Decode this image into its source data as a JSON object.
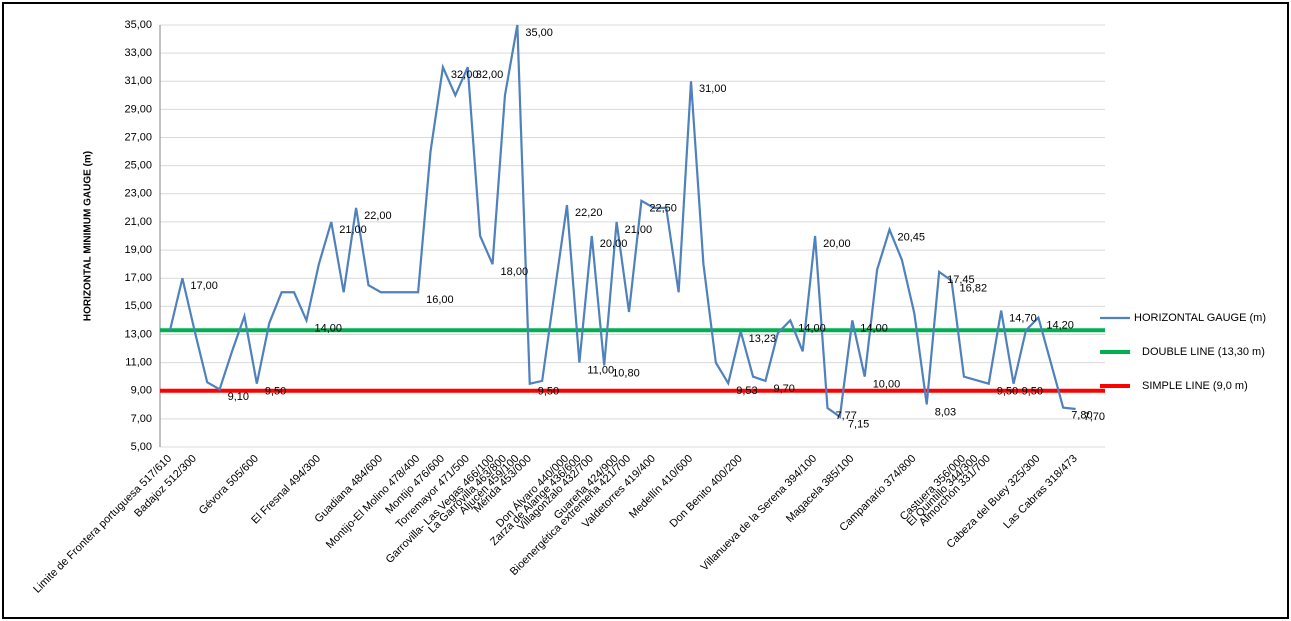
{
  "chart_data": {
    "type": "line",
    "y_label": "HORIZONTAL MINIMUM GAUGE (m)",
    "ylim": [
      5,
      35
    ],
    "yticks": [
      {
        "value": 5,
        "label": "5,00"
      },
      {
        "value": 7,
        "label": "7,00"
      },
      {
        "value": 9,
        "label": "9,00"
      },
      {
        "value": 11,
        "label": "11,00"
      },
      {
        "value": 13,
        "label": "13,00"
      },
      {
        "value": 15,
        "label": "15,00"
      },
      {
        "value": 17,
        "label": "17,00"
      },
      {
        "value": 19,
        "label": "19,00"
      },
      {
        "value": 21,
        "label": "21,00"
      },
      {
        "value": 23,
        "label": "23,00"
      },
      {
        "value": 25,
        "label": "25,00"
      },
      {
        "value": 27,
        "label": "27,00"
      },
      {
        "value": 29,
        "label": "29,00"
      },
      {
        "value": 31,
        "label": "31,00"
      },
      {
        "value": 33,
        "label": "33,00"
      },
      {
        "value": 35,
        "label": "35,00"
      }
    ],
    "grid": true,
    "legend": "right",
    "categories": [
      "Limite de Frontera portuguesa 517/610",
      null,
      "Badajoz 512/300",
      null,
      null,
      null,
      null,
      "Gévora 505/600",
      null,
      null,
      null,
      null,
      "El Fresnal 494/300",
      null,
      null,
      null,
      null,
      "Guadiana 484/600",
      null,
      null,
      "Montijo-El Molino 478/400",
      null,
      "Montijo 476/600",
      null,
      "Torremayor 471/500",
      null,
      "Garrovilla- Las Vegas 466/100",
      "La Garrovilla 463/800",
      "Aljucén 459/100",
      "Mérida 453/000",
      null,
      null,
      "Don Álvaro 440/000",
      "Zarza de Alange 436/600",
      "Villagonzalo 432/700",
      null,
      "Guareña 424/900",
      "Bioenergética extremeña 421/700",
      null,
      "Valdetorres 419/400",
      null,
      null,
      "Medellín 410/600",
      null,
      null,
      null,
      "Don Benito 400/200",
      null,
      null,
      null,
      null,
      null,
      "Villanueva de la Serena 394/100",
      null,
      null,
      "Magacela 385/100",
      null,
      null,
      null,
      null,
      "Campanario 374/800",
      null,
      null,
      null,
      "Castuera 356/000",
      "El Quintillo 344/300",
      "Almorchón 331/700",
      null,
      null,
      null,
      "Cabeza del Buey 325/300",
      null,
      null,
      "Las Cabras 318/473"
    ],
    "series": [
      {
        "name": "HORIZONTAL GAUGE (m)",
        "color": "#4f81bd",
        "values": [
          13.3,
          17,
          13.2,
          9.6,
          9.1,
          11.8,
          14.3,
          9.5,
          13.8,
          16,
          16,
          14,
          18,
          21,
          16,
          22,
          16.5,
          16,
          16,
          16,
          16,
          26,
          32,
          30,
          32,
          20,
          18,
          30,
          35,
          9.5,
          9.7,
          16,
          22.2,
          11,
          20,
          10.8,
          21,
          14.6,
          22.5,
          22,
          22,
          16,
          31,
          18,
          11,
          9.53,
          13.23,
          10,
          9.7,
          13.1,
          14,
          11.8,
          20,
          7.77,
          7.15,
          14,
          10,
          17.6,
          20.45,
          18.3,
          14.5,
          8.03,
          17.45,
          16.82,
          10,
          9.75,
          9.5,
          14.7,
          9.5,
          13.3,
          14.2,
          11,
          7.8,
          7.7
        ],
        "value_labels": [
          null,
          "17,00",
          null,
          null,
          "9,10",
          null,
          null,
          "9,50",
          null,
          null,
          null,
          "14,00",
          null,
          "21,00",
          null,
          "22,00",
          null,
          null,
          null,
          null,
          "16,00",
          null,
          "32,00",
          null,
          "32,00",
          null,
          "18,00",
          null,
          "35,00",
          "9,50",
          null,
          null,
          "22,20",
          "11,00",
          "20,00",
          "10,80",
          "21,00",
          null,
          "22,50",
          null,
          null,
          null,
          "31,00",
          null,
          null,
          "9,53",
          "13,23",
          null,
          "9,70",
          null,
          "14,00",
          null,
          "20,00",
          "7,77",
          "7,15",
          "14,00",
          "10,00",
          null,
          "20,45",
          null,
          null,
          "8,03",
          "17,45",
          "16,82",
          null,
          null,
          "9,50",
          "14,70",
          "9,50",
          null,
          "14,20",
          null,
          "7,80",
          "7,70"
        ]
      }
    ],
    "reference_lines": [
      {
        "name": "DOUBLE LINE (13,30 m)",
        "value": 13.3,
        "color": "#00b050"
      },
      {
        "name": "SIMPLE LINE (9,0 m)",
        "value": 9,
        "color": "#ff0000"
      }
    ]
  }
}
